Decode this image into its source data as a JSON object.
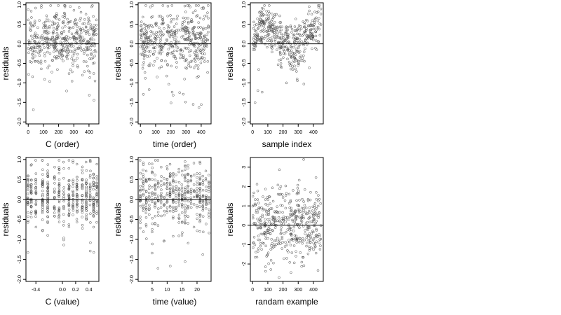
{
  "chart_data": [
    {
      "type": "scatter",
      "xlabel": "C (order)",
      "ylabel": "residuals",
      "x_ticks": [
        0,
        100,
        200,
        300,
        400
      ],
      "y_ticks": [
        -2.0,
        -1.5,
        -1.0,
        -0.5,
        0.0,
        0.5,
        1.0
      ],
      "y_tick_labels": [
        "-2.0",
        "-1.5",
        "-1.0",
        "-0.5",
        "0.0",
        "0.5",
        "1.0"
      ],
      "xlim": [
        -15,
        465
      ],
      "ylim": [
        -2.05,
        1.05
      ],
      "reference_line_y": 0,
      "n_points": 450,
      "seed": 11,
      "generator": "random"
    },
    {
      "type": "scatter",
      "xlabel": "time (order)",
      "ylabel": "residuals",
      "x_ticks": [
        0,
        100,
        200,
        300,
        400
      ],
      "y_ticks": [
        -2.0,
        -1.5,
        -1.0,
        -0.5,
        0.0,
        0.5,
        1.0
      ],
      "y_tick_labels": [
        "-2.0",
        "-1.5",
        "-1.0",
        "-0.5",
        "0.0",
        "0.5",
        "1.0"
      ],
      "xlim": [
        -15,
        465
      ],
      "ylim": [
        -2.05,
        1.05
      ],
      "reference_line_y": 0,
      "n_points": 450,
      "seed": 23,
      "generator": "random"
    },
    {
      "type": "scatter",
      "xlabel": "sample index",
      "ylabel": "residuals",
      "x_ticks": [
        0,
        100,
        200,
        300,
        400
      ],
      "y_ticks": [
        -2.0,
        -1.5,
        -1.0,
        -0.5,
        0.0,
        0.5,
        1.0
      ],
      "y_tick_labels": [
        "-2.0",
        "-1.5",
        "-1.0",
        "-0.5",
        "0.0",
        "0.5",
        "1.0"
      ],
      "xlim": [
        -15,
        465
      ],
      "ylim": [
        -2.05,
        1.05
      ],
      "reference_line_y": 0,
      "n_points": 450,
      "seed": 37,
      "generator": "wave"
    },
    {
      "type": "scatter",
      "xlabel": "C (value)",
      "ylabel": "residuals",
      "x_ticks": [
        -0.4,
        0.0,
        0.2,
        0.4
      ],
      "x_tick_labels": [
        "-0.4",
        "0.0",
        "0.2",
        "0.4"
      ],
      "y_ticks": [
        -2.0,
        -1.5,
        -1.0,
        -0.5,
        0.0,
        0.5,
        1.0
      ],
      "y_tick_labels": [
        "-2.0",
        "-1.5",
        "-1.0",
        "-0.5",
        "0.0",
        "0.5",
        "1.0"
      ],
      "xlim": [
        -0.55,
        0.55
      ],
      "ylim": [
        -2.05,
        1.05
      ],
      "reference_line_y": 0,
      "n_points": 450,
      "seed": 53,
      "generator": "columns",
      "columns": [
        -0.52,
        -0.47,
        -0.4,
        -0.3,
        -0.22,
        -0.12,
        -0.05,
        0.02,
        0.1,
        0.16,
        0.22,
        0.3,
        0.36,
        0.42,
        0.47,
        0.52
      ]
    },
    {
      "type": "scatter",
      "xlabel": "time (value)",
      "ylabel": "residuals",
      "x_ticks": [
        5,
        10,
        15,
        20
      ],
      "y_ticks": [
        -2.0,
        -1.5,
        -1.0,
        -0.5,
        0.0,
        0.5,
        1.0
      ],
      "y_tick_labels": [
        "-2.0",
        "-1.5",
        "-1.0",
        "-0.5",
        "0.0",
        "0.5",
        "1.0"
      ],
      "xlim": [
        0.3,
        24.7
      ],
      "ylim": [
        -2.05,
        1.05
      ],
      "reference_line_y": 0,
      "n_points": 450,
      "seed": 71,
      "generator": "columns",
      "columns": [
        1,
        2,
        3,
        4,
        5,
        6,
        7,
        8,
        9,
        10,
        11,
        12,
        13,
        14,
        15,
        16,
        17,
        18,
        19,
        20,
        21,
        22,
        23,
        24
      ]
    },
    {
      "type": "scatter",
      "xlabel": "randam example",
      "ylabel": "residuals",
      "x_ticks": [
        0,
        100,
        200,
        300,
        400
      ],
      "y_ticks": [
        -2,
        -1,
        0,
        1,
        2,
        3
      ],
      "y_tick_labels": [
        "-2",
        "-1",
        "0",
        "1",
        "2",
        "3"
      ],
      "xlim": [
        -15,
        465
      ],
      "ylim": [
        -2.9,
        3.5
      ],
      "reference_line_y": 0,
      "n_points": 450,
      "seed": 89,
      "generator": "normal"
    }
  ]
}
